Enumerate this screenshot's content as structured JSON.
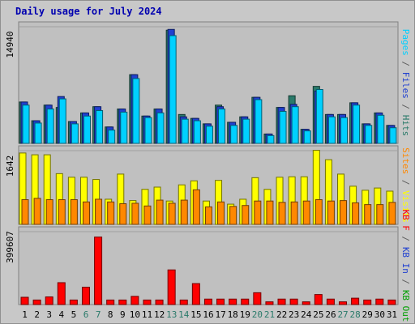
{
  "title": "Daily usage for July 2024",
  "chart_data": [
    {
      "type": "bar",
      "panel": "top",
      "categories": [
        "1",
        "2",
        "3",
        "4",
        "5",
        "6",
        "7",
        "8",
        "9",
        "10",
        "11",
        "12",
        "13",
        "14",
        "15",
        "16",
        "17",
        "18",
        "19",
        "20",
        "21",
        "22",
        "23",
        "24",
        "25",
        "26",
        "27",
        "28",
        "29",
        "30",
        "31"
      ],
      "weekend_categories": [
        "6",
        "7",
        "13",
        "14",
        "20",
        "21",
        "27",
        "28"
      ],
      "max_label": "14940",
      "ylim": [
        0,
        14940
      ],
      "series": [
        {
          "name": "Hits",
          "color": "#2a7a6a",
          "values": [
            5300,
            2900,
            4900,
            4600,
            2800,
            3900,
            4700,
            2100,
            4400,
            8800,
            3500,
            4400,
            14500,
            3700,
            3200,
            2500,
            4900,
            2700,
            3400,
            5900,
            1200,
            4600,
            6100,
            1800,
            7300,
            3700,
            3700,
            5200,
            2500,
            3900,
            2300
          ]
        },
        {
          "name": "Files",
          "color": "#2040d0",
          "values": [
            5300,
            2900,
            4900,
            6000,
            2800,
            3900,
            4700,
            2100,
            4400,
            8800,
            3500,
            4400,
            14600,
            3400,
            3200,
            2500,
            4700,
            2700,
            3400,
            5900,
            1200,
            4600,
            5000,
            1800,
            6700,
            3700,
            3700,
            5200,
            2500,
            3900,
            2300
          ]
        },
        {
          "name": "Pages",
          "color": "#00d0ff",
          "values": [
            4900,
            2600,
            4400,
            5700,
            2500,
            3500,
            4200,
            1700,
            4000,
            8300,
            3300,
            3900,
            13800,
            3100,
            2900,
            2200,
            4400,
            2300,
            3100,
            5600,
            1000,
            4100,
            4700,
            1600,
            6900,
            3400,
            3300,
            4900,
            2300,
            3600,
            2000
          ]
        }
      ]
    },
    {
      "type": "bar",
      "panel": "middle",
      "max_label": "1642",
      "ylim": [
        0,
        1642
      ],
      "series": [
        {
          "name": "Visits",
          "color": "#ffff00",
          "values": [
            1590,
            1550,
            1550,
            1130,
            1050,
            1050,
            1000,
            560,
            1120,
            530,
            780,
            830,
            520,
            880,
            970,
            520,
            980,
            450,
            560,
            1040,
            780,
            1050,
            1060,
            1060,
            1650,
            1440,
            1120,
            850,
            760,
            810,
            740
          ]
        },
        {
          "name": "Sites",
          "color": "#ff8800",
          "values": [
            550,
            580,
            550,
            550,
            550,
            500,
            560,
            500,
            460,
            470,
            410,
            540,
            470,
            540,
            770,
            390,
            500,
            400,
            420,
            520,
            520,
            490,
            500,
            520,
            550,
            520,
            530,
            480,
            440,
            440,
            490
          ]
        }
      ]
    },
    {
      "type": "bar",
      "panel": "bottom",
      "max_label": "399607",
      "ylim": [
        0,
        399607
      ],
      "series": [
        {
          "name": "KB F",
          "color": "#ff0000",
          "values": [
            40000,
            25000,
            42000,
            120000,
            25000,
            95000,
            370000,
            25000,
            25000,
            45000,
            25000,
            25000,
            190000,
            25000,
            115000,
            30000,
            30000,
            30000,
            30000,
            65000,
            15000,
            30000,
            30000,
            15000,
            55000,
            30000,
            15000,
            35000,
            25000,
            30000,
            25000
          ]
        },
        {
          "name": "KB In",
          "color": "#2040d0",
          "values": []
        },
        {
          "name": "KB Out",
          "color": "#00a000",
          "values": []
        }
      ]
    }
  ],
  "side_labels": {
    "top": [
      {
        "text": "Pages",
        "color": "#00d0ff"
      },
      {
        "text": " / ",
        "color": "#606060"
      },
      {
        "text": "Files",
        "color": "#2040d0"
      },
      {
        "text": " / ",
        "color": "#606060"
      },
      {
        "text": "Hits",
        "color": "#2a7a6a"
      }
    ],
    "middle": [
      {
        "text": "Sites",
        "color": "#ff8800"
      },
      {
        "text": " / ",
        "color": "#606060"
      },
      {
        "text": "Visits",
        "color": "#ffff00"
      }
    ],
    "bottom": [
      {
        "text": "KB F",
        "color": "#ff0000"
      },
      {
        "text": " / ",
        "color": "#606060"
      },
      {
        "text": "KB In",
        "color": "#2040d0"
      },
      {
        "text": " / ",
        "color": "#606060"
      },
      {
        "text": "KB Out",
        "color": "#00a000"
      }
    ]
  },
  "colors": {
    "weekday_label": "#000000",
    "weekend_label": "#2a7a6a",
    "panel_bg": "#c0c0c0",
    "frame_bg": "#c8c8c8",
    "title": "#0000b0"
  }
}
